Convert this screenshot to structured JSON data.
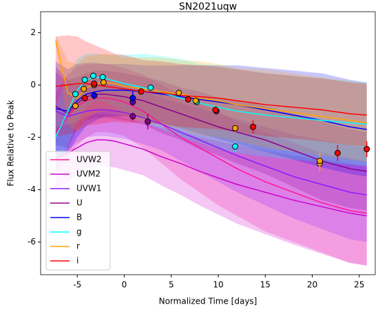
{
  "chart_data": {
    "type": "line",
    "title": "SN2021uqw",
    "xlabel": "Normalized Time [days]",
    "ylabel": "Flux Relative to Peak",
    "xlim": [
      -8.9,
      26.7
    ],
    "ylim": [
      -7.25,
      2.8
    ],
    "xticks": [
      -5,
      0,
      5,
      10,
      15,
      20,
      25
    ],
    "yticks": [
      -6,
      -4,
      -2,
      0,
      2
    ],
    "legend": "lower left",
    "x": [
      -7.3,
      -6,
      -5,
      -4,
      -3,
      -2,
      -1,
      0,
      2,
      4,
      6,
      8,
      10,
      12,
      15,
      18,
      21,
      24,
      25.8
    ],
    "series": [
      {
        "name": "UVW2",
        "color": "#ff1493",
        "values": [
          -1.8,
          -1.2,
          -0.8,
          -0.6,
          -0.5,
          -0.5,
          -0.55,
          -0.65,
          -1.0,
          -1.5,
          -2.0,
          -2.4,
          -2.8,
          -3.2,
          -3.7,
          -4.1,
          -4.5,
          -4.8,
          -4.9
        ],
        "spread": [
          1.5,
          1.6,
          1.5,
          1.4,
          1.3,
          1.3,
          1.3,
          1.3,
          1.4,
          1.5,
          1.6,
          1.7,
          1.8,
          1.8,
          1.9,
          1.9,
          1.9,
          2.0,
          2.0
        ],
        "points": {
          "x": [],
          "values": [],
          "errors": []
        }
      },
      {
        "name": "UVM2",
        "color": "#cc00cc",
        "values": [
          -2.8,
          -2.6,
          -2.4,
          -2.2,
          -2.1,
          -2.1,
          -2.15,
          -2.25,
          -2.45,
          -2.75,
          -3.0,
          -3.3,
          -3.55,
          -3.8,
          -4.1,
          -4.4,
          -4.65,
          -4.9,
          -5.0
        ],
        "spread": [
          1.2,
          1.1,
          1.0,
          1.0,
          1.0,
          1.0,
          1.0,
          1.0,
          1.0,
          1.1,
          1.2,
          1.3,
          1.4,
          1.5,
          1.6,
          1.7,
          1.8,
          1.9,
          1.9
        ],
        "points": {
          "x": [],
          "values": [],
          "errors": []
        }
      },
      {
        "name": "UVW1",
        "color": "#8a1aff",
        "values": [
          -1.0,
          -1.2,
          -1.1,
          -1.0,
          -0.95,
          -0.95,
          -1.0,
          -1.05,
          -1.25,
          -1.5,
          -1.8,
          -2.1,
          -2.4,
          -2.7,
          -3.1,
          -3.5,
          -3.8,
          -4.1,
          -4.2
        ],
        "spread": [
          1.5,
          1.3,
          1.1,
          1.0,
          1.0,
          1.0,
          1.0,
          1.0,
          1.0,
          1.0,
          1.1,
          1.2,
          1.3,
          1.4,
          1.5,
          1.6,
          1.7,
          1.8,
          1.8
        ],
        "points": {
          "x": [],
          "values": [],
          "errors": []
        }
      },
      {
        "name": "U",
        "color": "#8b008b",
        "values": [
          -0.8,
          -1.1,
          -0.7,
          -0.45,
          -0.35,
          -0.35,
          -0.4,
          -0.45,
          -0.6,
          -0.85,
          -1.1,
          -1.35,
          -1.6,
          -1.8,
          -2.1,
          -2.5,
          -2.9,
          -3.2,
          -3.3
        ],
        "spread": [
          1.5,
          1.3,
          1.0,
          0.9,
          0.9,
          0.9,
          0.9,
          0.9,
          0.9,
          1.0,
          1.0,
          1.1,
          1.1,
          1.2,
          1.3,
          1.4,
          1.5,
          1.5,
          1.5
        ],
        "points": {
          "x": [
            0.9,
            0.9,
            2.5,
            9.8
          ],
          "values": [
            -0.65,
            -1.2,
            -1.4,
            -1.0
          ],
          "errors": [
            0.15,
            0.15,
            0.3,
            0.1
          ]
        }
      },
      {
        "name": "B",
        "color": "#0000ff",
        "values": [
          -0.9,
          -1.0,
          -0.6,
          -0.35,
          -0.25,
          -0.2,
          -0.2,
          -0.2,
          -0.25,
          -0.35,
          -0.45,
          -0.55,
          -0.65,
          -0.75,
          -0.95,
          -1.15,
          -1.35,
          -1.6,
          -1.7
        ],
        "spread": [
          1.8,
          1.6,
          1.4,
          1.2,
          1.1,
          1.0,
          1.0,
          1.0,
          1.0,
          1.1,
          1.2,
          1.3,
          1.4,
          1.5,
          1.6,
          1.7,
          1.8,
          1.8,
          1.8
        ],
        "points": {
          "x": [
            -3.2,
            0.9
          ],
          "values": [
            -0.4,
            -0.5
          ],
          "errors": [
            0.15,
            0.25
          ]
        }
      },
      {
        "name": "g",
        "color": "#00ffff",
        "values": [
          -2.0,
          -1.0,
          -0.2,
          0.2,
          0.3,
          0.25,
          0.15,
          0.05,
          -0.1,
          -0.3,
          -0.5,
          -0.7,
          -0.85,
          -1.0,
          -1.15,
          -1.25,
          -1.35,
          -1.45,
          -1.5
        ],
        "spread": [
          1.2,
          1.3,
          1.2,
          1.0,
          0.9,
          0.9,
          1.0,
          1.1,
          1.3,
          1.4,
          1.5,
          1.5,
          1.6,
          1.6,
          1.6,
          1.6,
          1.6,
          1.6,
          1.6
        ],
        "points": {
          "x": [
            -5.2,
            -4.2,
            -3.3,
            -2.3,
            2.8,
            7.7,
            11.8
          ],
          "values": [
            -0.35,
            0.2,
            0.35,
            0.3,
            -0.1,
            -0.65,
            -2.35
          ],
          "errors": [
            0.1,
            0.1,
            0.1,
            0.1,
            0.1,
            0.1,
            0.2
          ]
        }
      },
      {
        "name": "r",
        "color": "#ffa500",
        "values": [
          1.7,
          -0.3,
          -0.5,
          -0.1,
          0.05,
          0.1,
          0.05,
          -0.05,
          -0.15,
          -0.25,
          -0.35,
          -0.5,
          -0.6,
          -0.75,
          -0.9,
          -1.05,
          -1.2,
          -1.35,
          -1.45
        ],
        "spread": [
          0.2,
          1.2,
          1.3,
          1.2,
          1.1,
          1.1,
          1.1,
          1.1,
          1.2,
          1.3,
          1.3,
          1.4,
          1.4,
          1.4,
          1.5,
          1.5,
          1.5,
          1.5,
          1.5
        ],
        "points": {
          "x": [
            -5.2,
            -4.3,
            -3.2,
            -2.2,
            5.8,
            7.6,
            11.8,
            20.8,
            20.8
          ],
          "values": [
            -0.8,
            -0.15,
            0.0,
            0.1,
            -0.3,
            -0.6,
            -1.65,
            -3.0,
            -2.9
          ],
          "errors": [
            0.1,
            0.1,
            0.1,
            0.1,
            0.1,
            0.1,
            0.15,
            0.3,
            0.3
          ]
        }
      },
      {
        "name": "i",
        "color": "#ff0000",
        "values": [
          -0.05,
          0.0,
          0.05,
          0.05,
          0.0,
          -0.05,
          -0.1,
          -0.15,
          -0.25,
          -0.3,
          -0.4,
          -0.45,
          -0.5,
          -0.6,
          -0.75,
          -0.85,
          -0.95,
          -1.1,
          -1.15
        ],
        "spread": [
          1.9,
          1.9,
          1.8,
          1.6,
          1.5,
          1.4,
          1.3,
          1.3,
          1.2,
          1.2,
          1.2,
          1.2,
          1.2,
          1.2,
          1.2,
          1.2,
          1.2,
          1.2,
          1.2
        ],
        "points": {
          "x": [
            -4.2,
            -3.2,
            1.8,
            6.8,
            9.7,
            13.7,
            22.7,
            25.8
          ],
          "values": [
            -0.5,
            0.05,
            -0.25,
            -0.55,
            -0.95,
            -1.6,
            -2.6,
            -2.45
          ],
          "errors": [
            0.1,
            0.1,
            0.1,
            0.1,
            0.1,
            0.25,
            0.3,
            0.3
          ]
        }
      }
    ]
  }
}
